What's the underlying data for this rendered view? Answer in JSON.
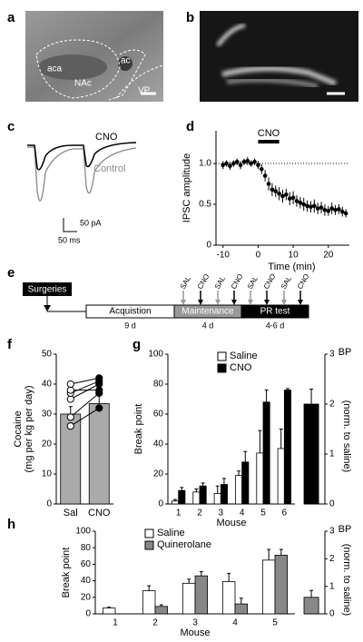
{
  "panels": {
    "a": {
      "label": "a",
      "regions": [
        "aca",
        "NAc",
        "ac",
        "VP"
      ]
    },
    "b": {
      "label": "b"
    },
    "c": {
      "label": "c",
      "traces": [
        "CNO",
        "Control"
      ],
      "scale_bar": [
        "50 pA",
        "50 ms"
      ]
    },
    "e": {
      "label": "e",
      "start": "Surgeries",
      "phases": [
        {
          "name": "Acquistion",
          "duration": "9 d"
        },
        {
          "name": "Maintenance",
          "duration": "4 d"
        },
        {
          "name": "PR test",
          "duration": "4-6 d"
        }
      ],
      "injections": [
        "SAL",
        "CNO",
        "SAL",
        "CNO",
        "SAL",
        "CNO",
        "SAL",
        "CNO"
      ]
    }
  },
  "chart_data": [
    {
      "type": "scatter",
      "panel_label": "d",
      "ylabel": "IPSC amplitude",
      "xlabel": "Time (min)",
      "color": "#000000",
      "annotation": {
        "text": "CNO",
        "x": [
          0,
          6
        ]
      },
      "reference_line": 1,
      "x": [
        -10,
        -9,
        -8,
        -7,
        -6,
        -5,
        -4,
        -3,
        -2,
        -1,
        0,
        1,
        2,
        3,
        4,
        5,
        6,
        7,
        8,
        9,
        10,
        11,
        12,
        13,
        14,
        15,
        16,
        17,
        18,
        19,
        20,
        21,
        22,
        23,
        24,
        25
      ],
      "y": [
        0.98,
        1.0,
        0.97,
        1.0,
        1.02,
        0.98,
        1.02,
        1.03,
        1.0,
        1.02,
        0.98,
        0.93,
        0.85,
        0.75,
        0.68,
        0.66,
        0.63,
        0.6,
        0.62,
        0.57,
        0.58,
        0.54,
        0.52,
        0.5,
        0.48,
        0.47,
        0.48,
        0.45,
        0.46,
        0.43,
        0.42,
        0.45,
        0.43,
        0.44,
        0.41,
        0.39
      ],
      "errors": [
        0.05,
        0.04,
        0.05,
        0.04,
        0.04,
        0.05,
        0.04,
        0.05,
        0.04,
        0.04,
        0.05,
        0.06,
        0.07,
        0.08,
        0.08,
        0.07,
        0.08,
        0.08,
        0.07,
        0.08,
        0.08,
        0.07,
        0.07,
        0.08,
        0.07,
        0.07,
        0.08,
        0.07,
        0.07,
        0.07,
        0.06,
        0.07,
        0.06,
        0.06,
        0.06,
        0.05
      ],
      "xlim": [
        -12,
        26
      ],
      "xticks": [
        -10,
        0,
        10,
        20
      ],
      "ylim": [
        0,
        1.4
      ],
      "yticks": [
        0,
        0.5,
        {
          "value": 1,
          "label": "1.0"
        }
      ]
    },
    {
      "type": "bar",
      "panel_label": "f",
      "ylabel": [
        "Cocaine",
        "(mg per kg per day)"
      ],
      "color": "#aaaaaa",
      "categories": [
        "Sal",
        "CNO"
      ],
      "values": [
        30,
        33.5
      ],
      "errors": [
        2.5,
        2.5
      ],
      "individual_values": [
        [
          26,
          32
        ],
        [
          29,
          37
        ],
        [
          35,
          40
        ],
        [
          37,
          41
        ],
        [
          38,
          38
        ],
        [
          40,
          42
        ]
      ],
      "ylim": [
        0,
        50
      ],
      "yticks": [
        0,
        10,
        20,
        30,
        40,
        50
      ]
    },
    {
      "type": "bar",
      "panel_label": "g",
      "ylabel": "Break point",
      "xlabel": "Mouse",
      "legend": "upper left",
      "categories": [
        "1",
        "2",
        "3",
        "4",
        "5",
        "6"
      ],
      "series": [
        {
          "name": "Saline",
          "color": "#ffffff",
          "values": [
            2,
            8,
            7,
            19,
            34,
            37
          ],
          "errors": [
            1,
            2,
            5,
            3,
            15,
            13
          ]
        },
        {
          "name": "CNO",
          "color": "#000000",
          "values": [
            9,
            12,
            13,
            28,
            68,
            76
          ],
          "errors": [
            2,
            2,
            4,
            7,
            8,
            1
          ]
        }
      ],
      "ylim": [
        0,
        100
      ],
      "yticks": [
        0,
        20,
        40,
        60,
        80,
        100
      ]
    },
    {
      "type": "bar",
      "ylabel": [
        "BP",
        "(norm. to saline)"
      ],
      "color": "#000000",
      "axis_side": "right",
      "values": [
        2.0
      ],
      "errors": [
        0.3
      ],
      "ylim": [
        0,
        3
      ],
      "yticks": [
        0,
        1,
        2,
        3
      ]
    },
    {
      "type": "bar",
      "panel_label": "h",
      "ylabel": "Break point",
      "xlabel": "Mouse",
      "legend": "upper left",
      "categories": [
        "1",
        "2",
        "3",
        "4",
        "5"
      ],
      "series": [
        {
          "name": "Saline",
          "color": "#ffffff",
          "values": [
            7,
            28,
            37,
            39,
            65
          ],
          "errors": [
            1,
            6,
            5,
            10,
            13
          ]
        },
        {
          "name": "Quinerolane",
          "color": "#888888",
          "values": [
            null,
            9,
            46,
            12,
            71
          ],
          "errors": [
            null,
            2,
            5,
            7,
            7
          ]
        }
      ],
      "ylim": [
        0,
        100
      ],
      "yticks": [
        0,
        20,
        40,
        60,
        80,
        100
      ]
    },
    {
      "type": "bar",
      "ylabel": [
        "BP",
        "(norm. to saline)"
      ],
      "color": "#888888",
      "axis_side": "right",
      "values": [
        0.6
      ],
      "errors": [
        0.25
      ],
      "ylim": [
        0,
        3
      ],
      "yticks": [
        0,
        1,
        2,
        3
      ]
    }
  ]
}
